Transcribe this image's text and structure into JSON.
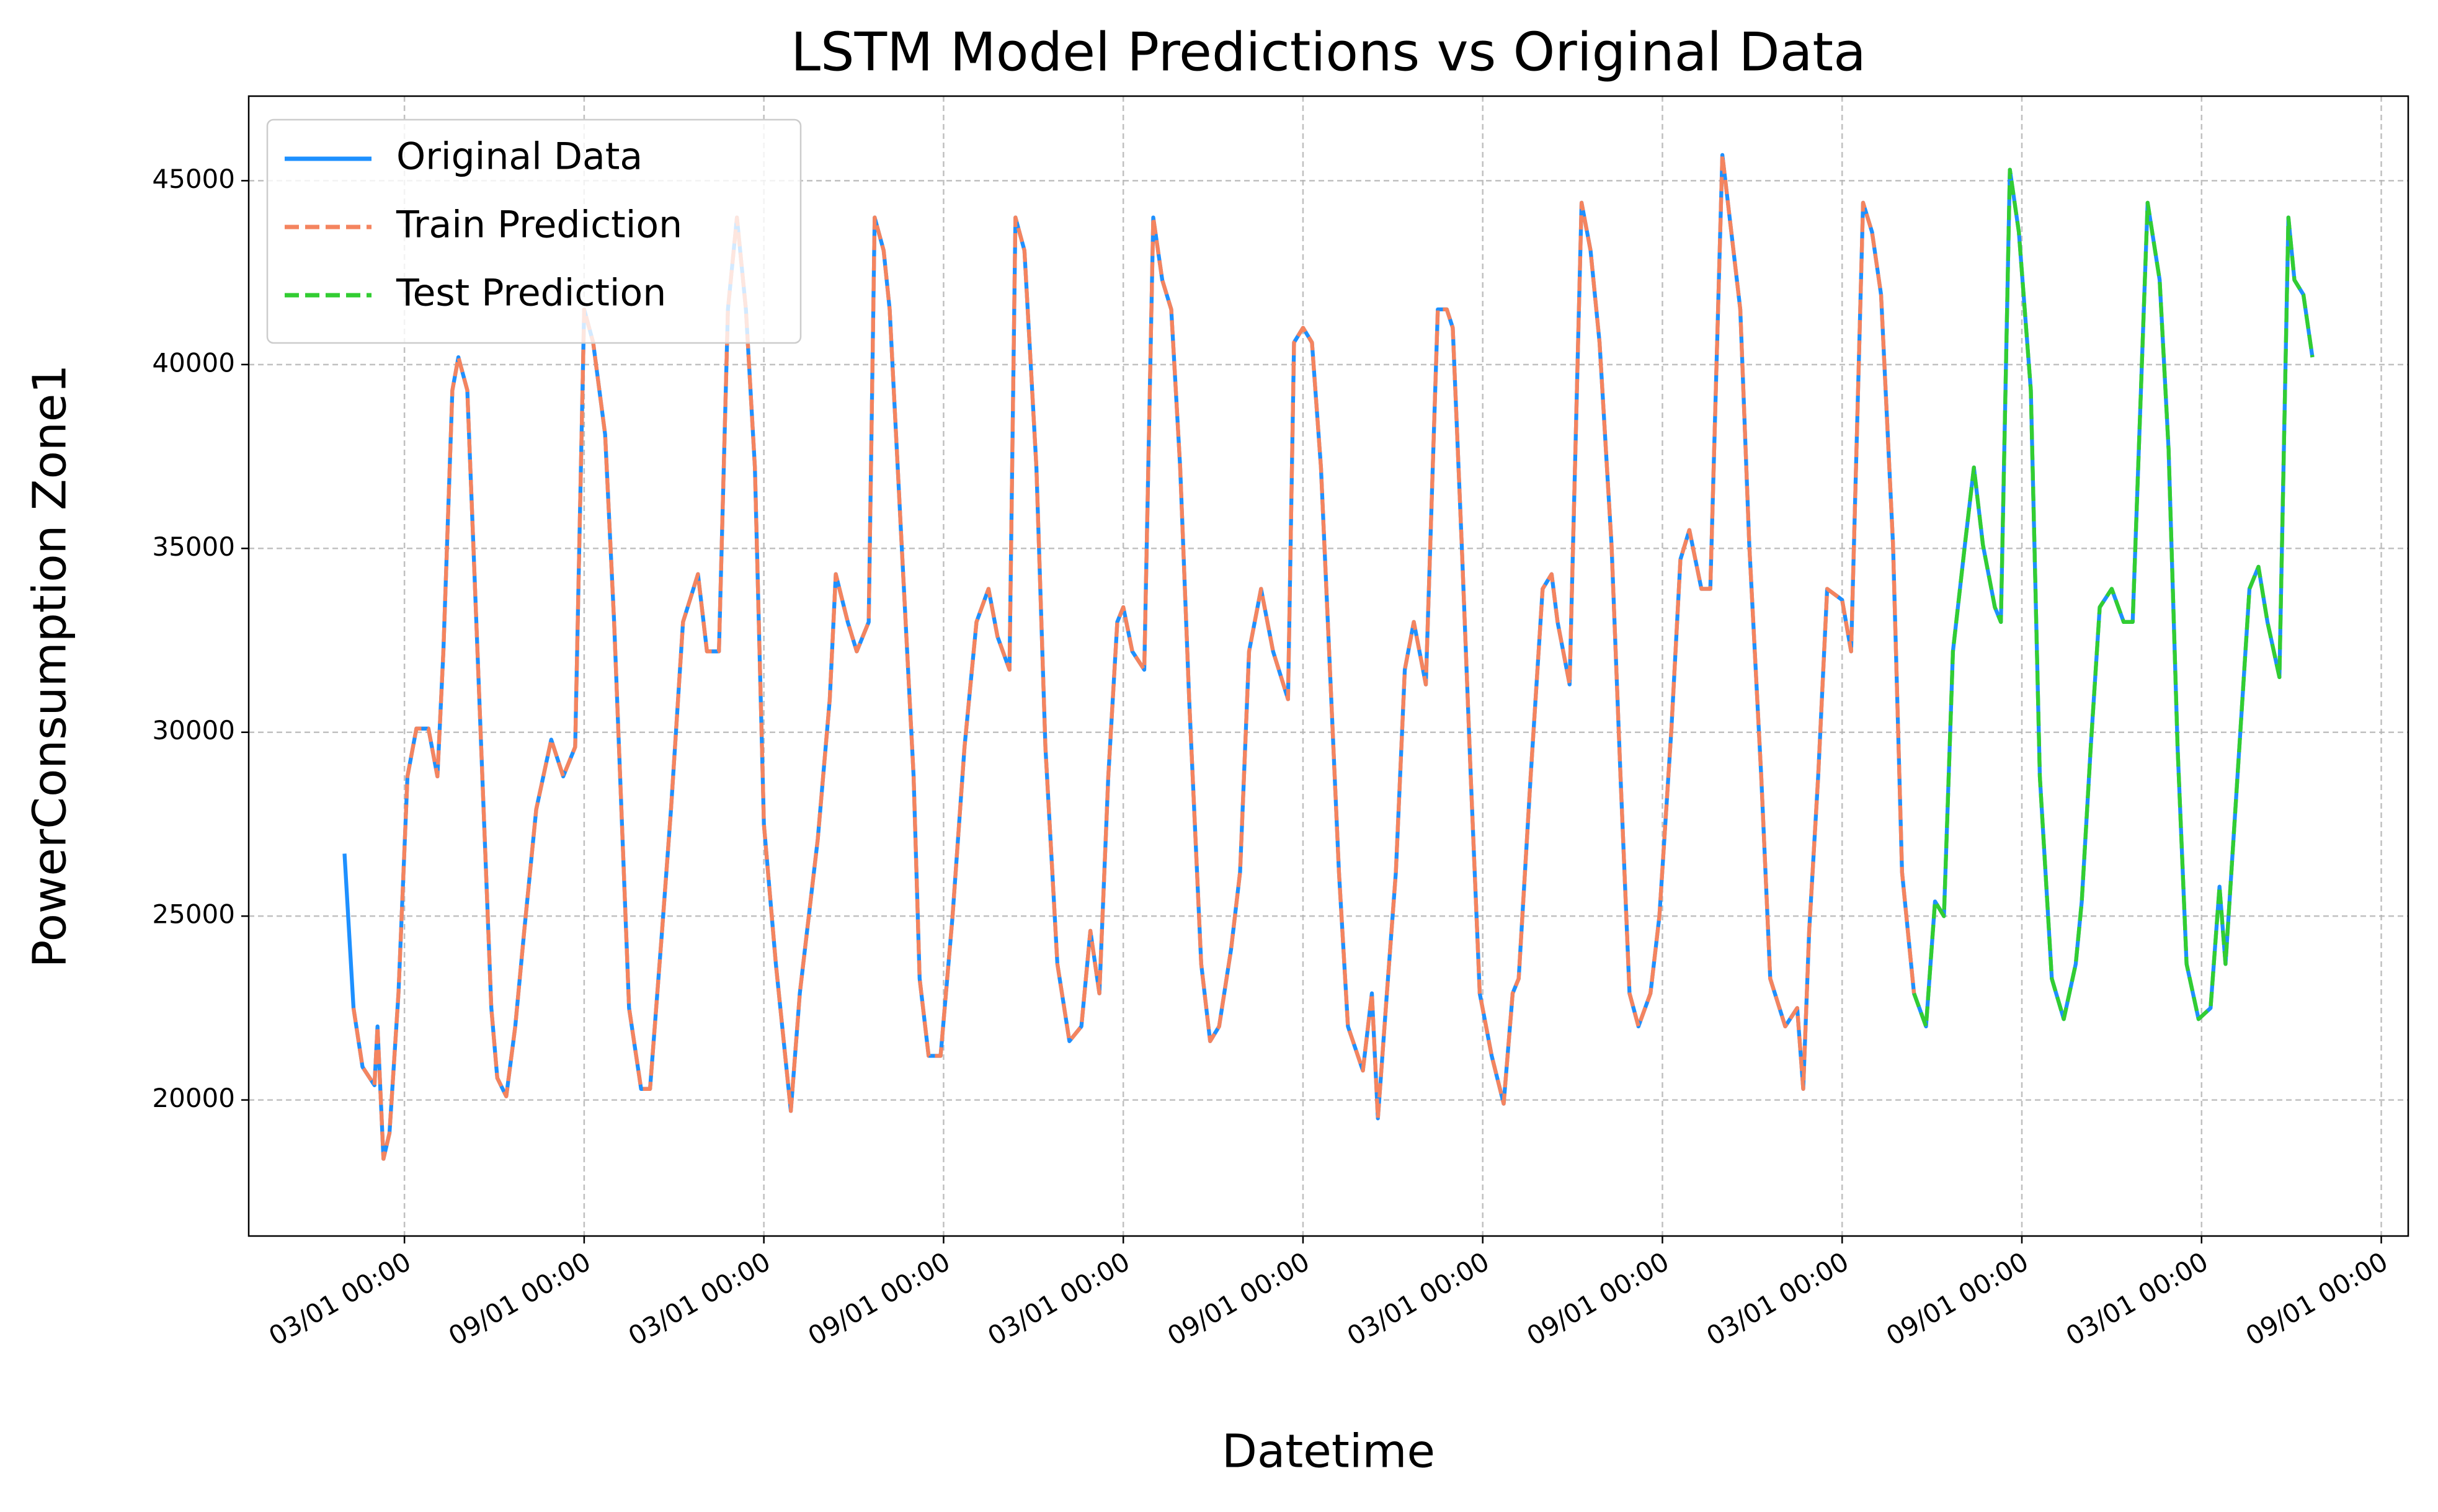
{
  "chart_data": {
    "type": "line",
    "title": "LSTM Model Predictions vs Original Data",
    "xlabel": "Datetime",
    "ylabel": "PowerConsumption Zone1",
    "grid": true,
    "legend": "upper left",
    "xlim": [
      -5.2,
      66.9
    ],
    "ylim": [
      16300,
      47300
    ],
    "xticks": [
      {
        "value": 0,
        "label": "03/01 00:00"
      },
      {
        "value": 6,
        "label": "09/01 00:00"
      },
      {
        "value": 12,
        "label": "03/01 00:00"
      },
      {
        "value": 18,
        "label": "09/01 00:00"
      },
      {
        "value": 24,
        "label": "03/01 00:00"
      },
      {
        "value": 30,
        "label": "09/01 00:00"
      },
      {
        "value": 36,
        "label": "03/01 00:00"
      },
      {
        "value": 42,
        "label": "09/01 00:00"
      },
      {
        "value": 48,
        "label": "03/01 00:00"
      },
      {
        "value": 54,
        "label": "09/01 00:00"
      },
      {
        "value": 60,
        "label": "03/01 00:00"
      },
      {
        "value": 66,
        "label": "09/01 00:00"
      }
    ],
    "yticks": [
      20000,
      25000,
      30000,
      35000,
      40000,
      45000
    ],
    "series": [
      {
        "name": "Original Data",
        "color": "#1e90ff",
        "linestyle": "solid",
        "x": [
          -2.0,
          -1.7,
          -1.4,
          -1.0,
          -0.9,
          -0.7,
          -0.5,
          -0.2,
          0.1,
          0.4,
          0.8,
          1.1,
          1.3,
          1.6,
          1.8,
          2.1,
          2.3,
          2.6,
          2.9,
          3.1,
          3.4,
          3.7,
          4.0,
          4.4,
          4.9,
          5.3,
          5.7,
          6.0,
          6.3,
          6.7,
          7.0,
          7.3,
          7.5,
          7.9,
          8.2,
          8.6,
          8.9,
          9.3,
          9.8,
          10.1,
          10.5,
          10.8,
          11.1,
          11.4,
          11.7,
          12.0,
          12.4,
          12.9,
          13.2,
          13.5,
          13.8,
          14.2,
          14.4,
          14.8,
          15.1,
          15.5,
          15.7,
          16.0,
          16.2,
          16.6,
          17.0,
          17.2,
          17.5,
          17.9,
          18.3,
          18.7,
          19.1,
          19.5,
          19.8,
          20.2,
          20.4,
          20.7,
          21.1,
          21.4,
          21.8,
          22.2,
          22.6,
          22.9,
          23.2,
          23.5,
          23.8,
          24.0,
          24.3,
          24.7,
          25.0,
          25.3,
          25.6,
          25.9,
          26.2,
          26.6,
          26.9,
          27.2,
          27.6,
          27.9,
          28.2,
          28.6,
          29.0,
          29.5,
          29.7,
          30.0,
          30.3,
          30.6,
          30.9,
          31.2,
          31.5,
          32.0,
          32.3,
          32.5,
          32.8,
          33.1,
          33.4,
          33.7,
          34.1,
          34.5,
          34.8,
          35.0,
          35.3,
          35.6,
          35.9,
          36.3,
          36.7,
          37.0,
          37.2,
          37.6,
          38.0,
          38.3,
          38.5,
          38.9,
          39.3,
          39.6,
          39.9,
          40.3,
          40.6,
          40.9,
          41.2,
          41.6,
          41.9,
          42.3,
          42.6,
          42.9,
          43.3,
          43.6,
          44.0,
          44.3,
          44.6,
          44.9,
          45.3,
          45.6,
          46.1,
          46.5,
          46.7,
          46.9,
          47.2,
          47.5,
          48.0,
          48.3,
          48.7,
          49.0,
          49.3,
          49.7,
          50.0,
          50.4,
          50.8,
          51.1,
          51.4,
          51.7,
          52.1,
          52.4,
          52.7,
          53.1,
          53.3,
          53.6,
          53.9,
          54.3,
          54.6,
          55.0,
          55.4,
          55.8,
          56.0,
          56.3,
          56.6,
          57.0,
          57.4,
          57.7,
          58.2,
          58.6,
          58.9,
          59.2,
          59.5,
          59.9,
          60.3,
          60.6,
          60.8,
          61.2,
          61.6,
          61.9,
          62.2,
          62.6,
          62.9,
          63.1,
          63.4,
          63.7
        ],
        "values": [
          26700,
          22500,
          20900,
          20400,
          22000,
          18400,
          19100,
          22900,
          28800,
          30100,
          30100,
          28800,
          32200,
          39300,
          40200,
          39300,
          35100,
          28800,
          22500,
          20600,
          20100,
          22000,
          24600,
          27900,
          29800,
          28800,
          29600,
          41500,
          40600,
          38100,
          33000,
          26700,
          22500,
          20300,
          20300,
          24600,
          27900,
          33000,
          34300,
          32200,
          32200,
          41500,
          44000,
          41500,
          37200,
          27500,
          23700,
          19700,
          22900,
          25000,
          27100,
          30900,
          34300,
          33000,
          32200,
          33000,
          44000,
          43100,
          41500,
          35100,
          28800,
          23300,
          21200,
          21200,
          25000,
          29600,
          33000,
          33900,
          32600,
          31700,
          44000,
          43100,
          37200,
          29600,
          23700,
          21600,
          22000,
          24600,
          22900,
          28800,
          33000,
          33400,
          32200,
          31700,
          44000,
          42300,
          41500,
          37200,
          30900,
          23700,
          21600,
          22000,
          24100,
          26200,
          32200,
          33900,
          32200,
          30900,
          40600,
          41000,
          40600,
          37200,
          31700,
          26200,
          22000,
          20800,
          22900,
          19500,
          22900,
          26200,
          31700,
          33000,
          31300,
          41500,
          41500,
          41000,
          35100,
          28800,
          22900,
          21200,
          19900,
          22900,
          23300,
          28800,
          33900,
          34300,
          33000,
          31300,
          44400,
          43100,
          40600,
          35100,
          28800,
          22900,
          22000,
          22900,
          25000,
          30100,
          34700,
          35500,
          33900,
          33900,
          45700,
          43600,
          41500,
          35100,
          28800,
          23300,
          22000,
          22500,
          20300,
          24600,
          28800,
          33900,
          33600,
          32200,
          44400,
          43600,
          41900,
          35100,
          26200,
          22900,
          22000,
          25400,
          25000,
          32200,
          35100,
          37200,
          35100,
          33400,
          33000,
          45300,
          43600,
          39300,
          28800,
          23300,
          22200,
          23700,
          25400,
          29600,
          33400,
          33900,
          33000,
          33000,
          44400,
          42300,
          37700,
          29600,
          23700,
          22200,
          22500,
          25800,
          23700,
          28800,
          33900,
          34500,
          33000,
          31500,
          44000,
          42300,
          41900,
          40200
        ]
      },
      {
        "name": "Train Prediction",
        "color": "#f4845f",
        "linestyle": "dashed",
        "x": [
          -1.7,
          -1.4,
          -1.0,
          -0.9,
          -0.7,
          -0.5,
          -0.2,
          0.1,
          0.4,
          0.8,
          1.1,
          1.3,
          1.6,
          1.8,
          2.1,
          2.3,
          2.6,
          2.9,
          3.1,
          3.4,
          3.7,
          4.0,
          4.4,
          4.9,
          5.3,
          5.7,
          6.0,
          6.3,
          6.7,
          7.0,
          7.3,
          7.5,
          7.9,
          8.2,
          8.6,
          8.9,
          9.3,
          9.8,
          10.1,
          10.5,
          10.8,
          11.1,
          11.4,
          11.7,
          12.0,
          12.4,
          12.9,
          13.2,
          13.5,
          13.8,
          14.2,
          14.4,
          14.8,
          15.1,
          15.5,
          15.7,
          16.0,
          16.2,
          16.6,
          17.0,
          17.2,
          17.5,
          17.9,
          18.3,
          18.7,
          19.1,
          19.5,
          19.8,
          20.2,
          20.4,
          20.7,
          21.1,
          21.4,
          21.8,
          22.2,
          22.6,
          22.9,
          23.2,
          23.5,
          23.8,
          24.0,
          24.3,
          24.7,
          25.0,
          25.3,
          25.6,
          25.9,
          26.2,
          26.6,
          26.9,
          27.2,
          27.6,
          27.9,
          28.2,
          28.6,
          29.0,
          29.5,
          29.7,
          30.0,
          30.3,
          30.6,
          30.9,
          31.2,
          31.5,
          32.0,
          32.3,
          32.5,
          32.8,
          33.1,
          33.4,
          33.7,
          34.1,
          34.5,
          34.8,
          35.0,
          35.3,
          35.6,
          35.9,
          36.3,
          36.7,
          37.0,
          37.2,
          37.6,
          38.0,
          38.3,
          38.5,
          38.9,
          39.3,
          39.6,
          39.9,
          40.3,
          40.6,
          40.9,
          41.2,
          41.6,
          41.9,
          42.3,
          42.6,
          42.9,
          43.3,
          43.6,
          44.0,
          44.3,
          44.6,
          44.9,
          45.3,
          45.6,
          46.1,
          46.5,
          46.7,
          46.9,
          47.2,
          47.5,
          48.0,
          48.3,
          48.7,
          49.0,
          49.3,
          49.7,
          50.0,
          50.4
        ],
        "values": [
          22500,
          20900,
          20400,
          22000,
          18400,
          19100,
          22900,
          28800,
          30100,
          30100,
          28800,
          32200,
          39300,
          40200,
          39300,
          35100,
          28800,
          22500,
          20600,
          20100,
          22000,
          24600,
          27900,
          29800,
          28800,
          29600,
          41500,
          40600,
          38100,
          33000,
          26700,
          22500,
          20300,
          20300,
          24600,
          27900,
          33000,
          34300,
          32200,
          32200,
          41500,
          44000,
          41500,
          37200,
          27500,
          23700,
          19700,
          22900,
          25000,
          27100,
          30900,
          34300,
          33000,
          32200,
          33000,
          44000,
          43100,
          41500,
          35100,
          28800,
          23300,
          21200,
          21200,
          25000,
          29600,
          33000,
          33900,
          32600,
          31700,
          44000,
          43100,
          37200,
          29600,
          23700,
          21600,
          22000,
          24600,
          22900,
          28800,
          33000,
          33400,
          32200,
          31700,
          44000,
          42300,
          41500,
          37200,
          30900,
          23700,
          21600,
          22000,
          24100,
          26200,
          32200,
          33900,
          32200,
          30900,
          40600,
          41000,
          40600,
          37200,
          31700,
          26200,
          22000,
          20800,
          22900,
          19500,
          22900,
          26200,
          31700,
          33000,
          31300,
          41500,
          41500,
          41000,
          35100,
          28800,
          22900,
          21200,
          19900,
          22900,
          23300,
          28800,
          33900,
          34300,
          33000,
          31300,
          44400,
          43100,
          40600,
          35100,
          28800,
          22900,
          22000,
          22900,
          25000,
          30100,
          34700,
          35500,
          33900,
          33900,
          45700,
          43600,
          41500,
          35100,
          28800,
          23300,
          22000,
          22500,
          20300,
          24600,
          28800,
          33900,
          33600,
          32200,
          44400,
          43600,
          41900,
          35100,
          26200,
          22900
        ]
      },
      {
        "name": "Test Prediction",
        "color": "#32cd32",
        "linestyle": "dashed",
        "x": [
          50.4,
          50.8,
          51.1,
          51.4,
          51.7,
          52.1,
          52.4,
          52.7,
          53.1,
          53.3,
          53.6,
          53.9,
          54.3,
          54.6,
          55.0,
          55.4,
          55.8,
          56.0,
          56.3,
          56.6,
          57.0,
          57.4,
          57.7,
          58.2,
          58.6,
          58.9,
          59.2,
          59.5,
          59.9,
          60.3,
          60.6,
          60.8,
          61.2,
          61.6,
          61.9,
          62.2,
          62.6,
          62.9,
          63.1,
          63.4,
          63.7
        ],
        "values": [
          22900,
          22000,
          25400,
          25000,
          32200,
          35100,
          37200,
          35100,
          33400,
          33000,
          45300,
          43600,
          39300,
          28800,
          23300,
          22200,
          23700,
          25400,
          29600,
          33400,
          33900,
          33000,
          33000,
          44400,
          42300,
          37700,
          29600,
          23700,
          22200,
          22500,
          25800,
          23700,
          28800,
          33900,
          34500,
          33000,
          31500,
          44000,
          42300,
          41900,
          40200
        ]
      }
    ]
  }
}
